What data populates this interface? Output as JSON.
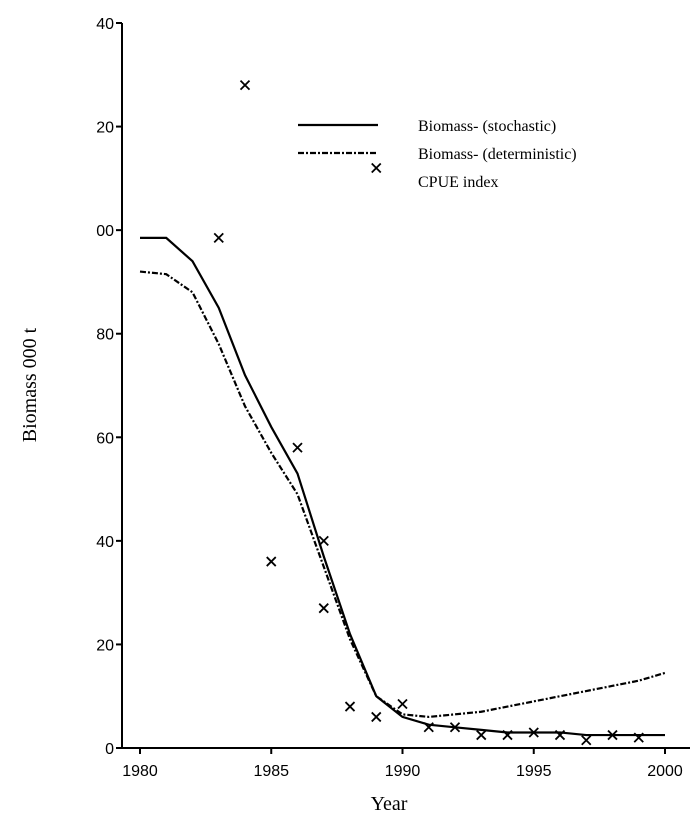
{
  "chart_data": {
    "type": "line",
    "x_label": "Year",
    "y_label": "Biomass 000 t",
    "xlim": [
      1980,
      2000
    ],
    "xticks": [
      1980,
      1985,
      1990,
      1995,
      2000
    ],
    "ylim": [
      0,
      140
    ],
    "yticks": [
      0,
      20,
      40,
      60,
      80,
      {
        "value": 100,
        "label": "00"
      },
      {
        "value": 120,
        "label": "20"
      },
      {
        "value": 140,
        "label": "40"
      }
    ],
    "legend": "upper-right",
    "series": [
      {
        "name": "Biomass- (stochastic)",
        "color": "#000000",
        "style": "solid",
        "x": [
          1980,
          1981,
          1982,
          1983,
          1984,
          1985,
          1986,
          1987,
          1988,
          1989,
          1990,
          1991,
          1992,
          1993,
          1994,
          1995,
          1996,
          1997,
          1998,
          1999,
          2000
        ],
        "values": [
          98.5,
          98.5,
          94,
          85,
          72,
          62,
          53,
          37,
          22,
          10,
          6,
          4.5,
          4,
          3.5,
          3,
          3,
          3,
          2.5,
          2.5,
          2.5,
          2.5
        ]
      },
      {
        "name": "Biomass- (deterministic)",
        "color": "#000000",
        "style": "dashdot",
        "x": [
          1980,
          1981,
          1982,
          1983,
          1984,
          1985,
          1986,
          1987,
          1988,
          1989,
          1990,
          1991,
          1992,
          1993,
          1994,
          1995,
          1996,
          1997,
          1998,
          1999,
          2000
        ],
        "values": [
          92,
          91.5,
          88,
          78,
          66,
          57,
          49,
          35,
          21,
          10,
          6.5,
          6,
          6.5,
          7,
          8,
          9,
          10,
          11,
          12,
          13,
          14.5
        ]
      },
      {
        "name": "CPUE index",
        "color": "#000000",
        "style": "marker",
        "x": [
          1983,
          1984,
          1985,
          1986,
          1987,
          1987,
          1988,
          1989,
          1989,
          1990,
          1991,
          1992,
          1993,
          1994,
          1995,
          1996,
          1997,
          1998,
          1999
        ],
        "values": [
          98.5,
          128,
          36,
          58,
          27,
          40,
          8,
          112,
          6,
          8.5,
          4,
          4,
          2.5,
          2.5,
          3,
          2.5,
          1.5,
          2.5,
          2
        ]
      }
    ]
  }
}
